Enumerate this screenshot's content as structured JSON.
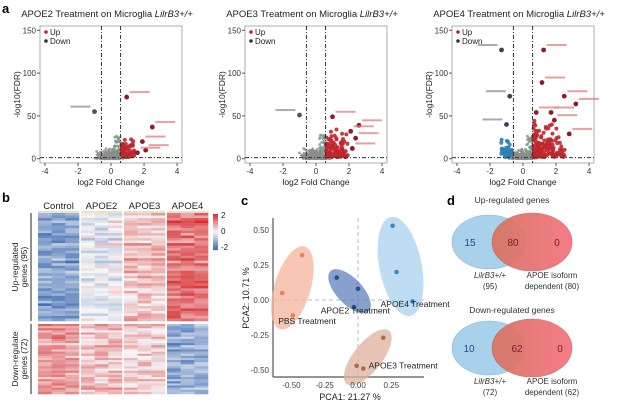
{
  "panel_labels": [
    "a",
    "b",
    "c",
    "d"
  ],
  "colors": {
    "up": "#c0272d",
    "down": "#2f7fb4",
    "ns": "#8c8c8c",
    "heat_high": "#d73033",
    "heat_mid": "#f7f7f7",
    "heat_low": "#3f6db4"
  },
  "chart_data": [
    {
      "type": "scatter",
      "title": "APOE2 Treatment on Microglia",
      "title_italic": "LilrB3+/+",
      "xlabel": "log2 Fold Change",
      "ylabel": "-log10(FDR)",
      "xlim": [
        -4.3,
        4.3
      ],
      "ylim": [
        -5,
        155
      ],
      "xticks": [
        -4,
        -2,
        0,
        2,
        4
      ],
      "yticks": [
        0,
        50,
        100,
        150
      ],
      "thresholds": {
        "log2fc": [
          -0.58,
          0.58
        ],
        "neglog10fdr": 1.3
      },
      "legend": {
        "position": "top-left",
        "entries": [
          "Up",
          "Down"
        ]
      },
      "highlight_points": [
        {
          "x": 0.95,
          "y": 72,
          "class": "up"
        },
        {
          "x": -1.0,
          "y": 55,
          "class": "ns"
        },
        {
          "x": 2.5,
          "y": 37,
          "class": "up"
        },
        {
          "x": 1.9,
          "y": 20,
          "class": "up"
        },
        {
          "x": 2.1,
          "y": 10,
          "class": "up"
        },
        {
          "x": 1.6,
          "y": 7,
          "class": "up"
        }
      ],
      "cloud": {
        "up_count": 60,
        "down_count": 0,
        "up_xmax": 1.4,
        "up_ymax": 25
      }
    },
    {
      "type": "scatter",
      "title": "APOE3 Treatment on Microglia",
      "title_italic": "LilrB3+/+",
      "xlabel": "log2 Fold Change",
      "ylabel": "-log10(FDR)",
      "xlim": [
        -4.3,
        4.3
      ],
      "ylim": [
        -5,
        155
      ],
      "xticks": [
        -4,
        -2,
        0,
        2,
        4
      ],
      "yticks": [
        0,
        50,
        100,
        150
      ],
      "thresholds": {
        "log2fc": [
          -0.58,
          0.58
        ],
        "neglog10fdr": 1.3
      },
      "legend": {
        "position": "top-left",
        "entries": [
          "Up",
          "Down"
        ]
      },
      "highlight_points": [
        {
          "x": 1.0,
          "y": 49,
          "class": "up"
        },
        {
          "x": -1.0,
          "y": 51,
          "class": "ns"
        },
        {
          "x": 2.6,
          "y": 39,
          "class": "up"
        },
        {
          "x": 2.1,
          "y": 32,
          "class": "up"
        },
        {
          "x": 2.4,
          "y": 24,
          "class": "up"
        },
        {
          "x": 2.2,
          "y": 12,
          "class": "up"
        }
      ],
      "cloud": {
        "up_count": 110,
        "down_count": 0,
        "up_xmax": 1.9,
        "up_ymax": 35
      }
    },
    {
      "type": "scatter",
      "title": "APOE4 Treatment on Microglia",
      "title_italic": "LilrB3+/+",
      "xlabel": "log2 Fold Change",
      "ylabel": "-log10(FDR)",
      "xlim": [
        -4.3,
        4.3
      ],
      "ylim": [
        -5,
        155
      ],
      "xticks": [
        -4,
        -2,
        0,
        2,
        4
      ],
      "yticks": [
        0,
        50,
        100,
        150
      ],
      "thresholds": {
        "log2fc": [
          -0.58,
          0.58
        ],
        "neglog10fdr": 1.3
      },
      "legend": {
        "position": "top-left",
        "entries": [
          "Up",
          "Down"
        ]
      },
      "highlight_points": [
        {
          "x": -1.3,
          "y": 127,
          "class": "down"
        },
        {
          "x": 1.25,
          "y": 127,
          "class": "up"
        },
        {
          "x": 1.15,
          "y": 89,
          "class": "up"
        },
        {
          "x": -0.8,
          "y": 73,
          "class": "down"
        },
        {
          "x": 2.5,
          "y": 73,
          "class": "up"
        },
        {
          "x": 3.2,
          "y": 64,
          "class": "up"
        },
        {
          "x": 0.8,
          "y": 54,
          "class": "up"
        },
        {
          "x": 1.7,
          "y": 54,
          "class": "up"
        },
        {
          "x": 1.9,
          "y": 45,
          "class": "up"
        },
        {
          "x": -1.0,
          "y": 40,
          "class": "down"
        },
        {
          "x": 2.8,
          "y": 29,
          "class": "up"
        }
      ],
      "cloud": {
        "up_count": 150,
        "down_count": 40,
        "up_xmax": 2.5,
        "up_ymax": 45
      }
    },
    {
      "type": "heatmap",
      "columns": [
        "Control",
        "APOE2",
        "APOE3",
        "APOE4"
      ],
      "replicates_per_group": 3,
      "row_groups": [
        {
          "label": "Up-regulated genes (95)",
          "rows": 95,
          "group_means": [
            -1.2,
            -0.1,
            0.5,
            1.3
          ]
        },
        {
          "label": "Down-regulate genes (72)",
          "rows": 72,
          "group_means": [
            0.9,
            0.5,
            0.3,
            -1.1
          ]
        }
      ],
      "colorbar": {
        "ticks": [
          2,
          0,
          -2
        ],
        "range": [
          -2,
          2
        ]
      }
    },
    {
      "type": "scatter",
      "xlabel": "PCA1: 21.27 %",
      "ylabel": "PCA2: 10.71 %",
      "xlim": [
        -0.62,
        0.45
      ],
      "ylim": [
        -0.53,
        0.58
      ],
      "xticks": [
        "-0.50",
        "-0.25",
        "0.00",
        "0.25"
      ],
      "yticks": [
        "0.50",
        "0.25",
        "0.00",
        "-0.25",
        "-0.50"
      ],
      "groups": [
        {
          "name": "PBS Treatment",
          "color": "#e8825d",
          "fill": "#f4b49c",
          "points": [
            [
              -0.42,
              0.32
            ],
            [
              -0.57,
              0.05
            ],
            [
              -0.49,
              -0.11
            ]
          ],
          "label_at": [
            -0.6,
            -0.17
          ]
        },
        {
          "name": "APOE2 Treatment",
          "color": "#2a4f8f",
          "fill": "#5f82bf",
          "points": [
            [
              -0.16,
              0.16
            ],
            [
              0.0,
              0.08
            ],
            [
              -0.03,
              -0.05
            ]
          ],
          "label_at": [
            -0.28,
            -0.095
          ]
        },
        {
          "name": "APOE4 Treatment",
          "color": "#3b87c2",
          "fill": "#a9d2ee",
          "points": [
            [
              0.26,
              0.53
            ],
            [
              0.29,
              0.2
            ],
            [
              0.41,
              -0.01
            ]
          ],
          "label_at": [
            0.17,
            -0.05
          ]
        },
        {
          "name": "APOE3 Treatment",
          "color": "#b4684a",
          "fill": "#ddb29e",
          "points": [
            [
              0.19,
              -0.27
            ],
            [
              -0.01,
              -0.47
            ],
            [
              0.04,
              -0.49
            ]
          ],
          "label_at": [
            0.08,
            -0.49
          ]
        }
      ]
    },
    {
      "type": "venn",
      "title": "Up-regulated genes",
      "sets": [
        {
          "label": "LilrB3+/+",
          "count_label": "(95)"
        },
        {
          "label": "APOE isoform",
          "count_label": "dependent (80)"
        }
      ],
      "regions": {
        "only_a": "15",
        "both": "80",
        "only_b": "0"
      }
    },
    {
      "type": "venn",
      "title": "Down-regulated genes",
      "sets": [
        {
          "label": "LilrB3+/+",
          "count_label": "(72)"
        },
        {
          "label": "APOE isoform",
          "count_label": "dependent (62)"
        }
      ],
      "regions": {
        "only_a": "10",
        "both": "62",
        "only_b": "0"
      }
    }
  ]
}
